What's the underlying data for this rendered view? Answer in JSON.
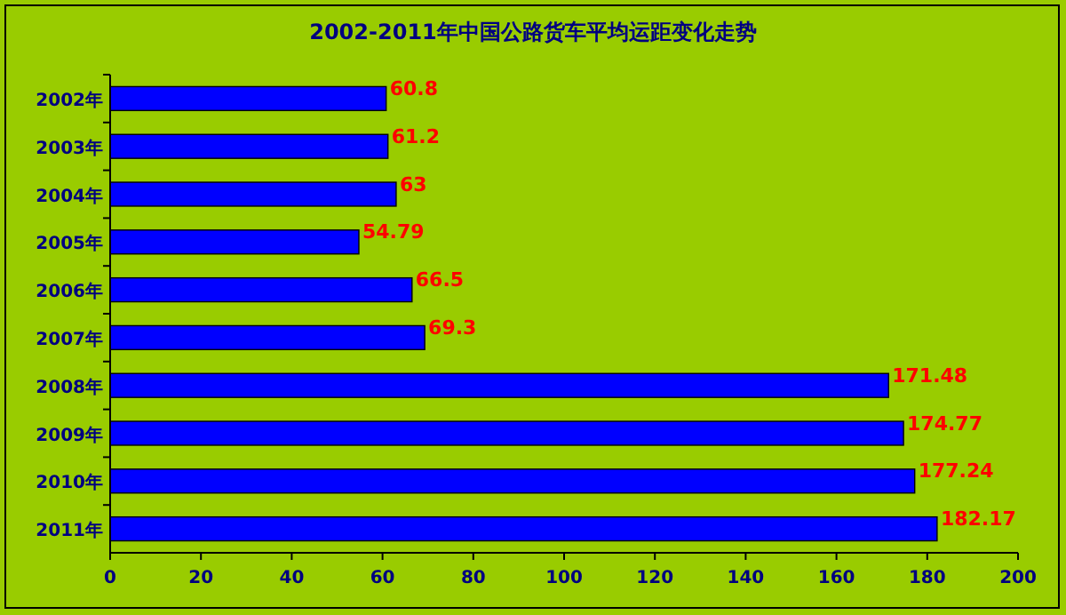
{
  "chart_data": {
    "type": "bar",
    "orientation": "horizontal",
    "title": "2002-2011年中国公路货车平均运距变化走势",
    "categories": [
      "2002年",
      "2003年",
      "2004年",
      "2005年",
      "2006年",
      "2007年",
      "2008年",
      "2009年",
      "2010年",
      "2011年"
    ],
    "values": [
      60.8,
      61.2,
      63,
      54.79,
      66.5,
      69.3,
      171.48,
      174.77,
      177.24,
      182.17
    ],
    "color": "#0000ff",
    "xlim": [
      0,
      200
    ],
    "xticks": [
      0,
      20,
      40,
      60,
      80,
      100,
      120,
      140,
      160,
      180,
      200
    ],
    "data_labels": true
  }
}
